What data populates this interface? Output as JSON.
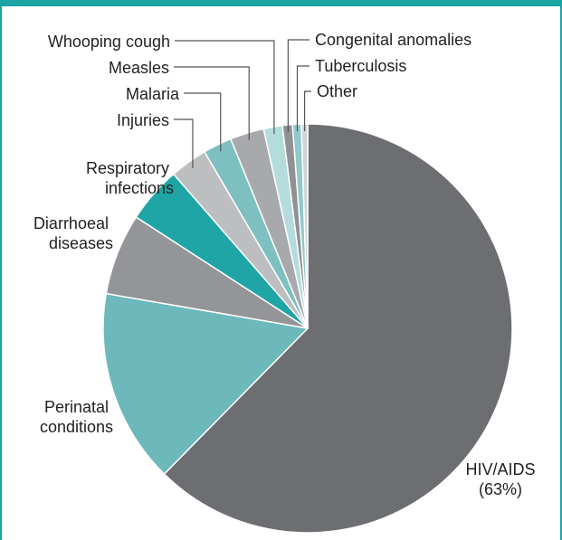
{
  "chart_data": {
    "type": "pie",
    "title": "",
    "slices": [
      {
        "label": "HIV/AIDS",
        "annotation": "(63%)",
        "value": 63,
        "color": "#6d6e71"
      },
      {
        "label": "Perinatal conditions",
        "value": 15.5,
        "color": "#6cb8bb"
      },
      {
        "label": "Diarrhoeal diseases",
        "value": 6.5,
        "color": "#939598"
      },
      {
        "label": "Respiratory infections",
        "value": 4.5,
        "color": "#20a5a6"
      },
      {
        "label": "Injuries",
        "value": 3,
        "color": "#bcbec0"
      },
      {
        "label": "Malaria",
        "value": 2.3,
        "color": "#7ebfc1"
      },
      {
        "label": "Measles",
        "value": 2.7,
        "color": "#a7a9ac"
      },
      {
        "label": "Whooping cough",
        "value": 1.5,
        "color": "#b4dcdd"
      },
      {
        "label": "Congenital anomalies",
        "value": 0.8,
        "color": "#8f9194"
      },
      {
        "label": "Tuberculosis",
        "value": 0.7,
        "color": "#93c8ca"
      },
      {
        "label": "Other",
        "value": 0.5,
        "color": "#d1d3d4"
      }
    ]
  },
  "colors": {
    "frame": "#1aa5a3",
    "stroke": "#ffffff",
    "text": "#222222",
    "leader": "#555555"
  }
}
